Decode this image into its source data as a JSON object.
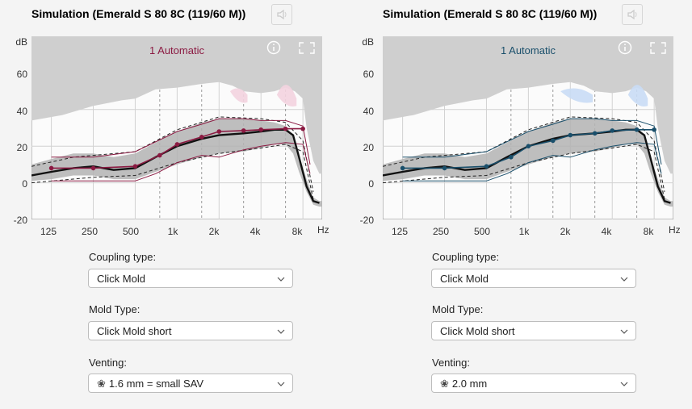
{
  "panels": [
    {
      "title": "Simulation (Emerald S 80 8C (119/60 M))",
      "accent": "#8b1a42",
      "band_color": "#f3d3df",
      "mode_label": "1 Automatic",
      "fields": {
        "coupling": {
          "label": "Coupling type:",
          "value": "Click Mold"
        },
        "mold": {
          "label": "Mold Type:",
          "value": "Click Mold short"
        },
        "venting": {
          "label": "Venting:",
          "value": "1.6 mm = small SAV"
        }
      }
    },
    {
      "title": "Simulation (Emerald S 80 8C (119/60 M))",
      "accent": "#1a4f6b",
      "band_color": "#c9dcf5",
      "mode_label": "1 Automatic",
      "fields": {
        "coupling": {
          "label": "Coupling type:",
          "value": "Click Mold"
        },
        "mold": {
          "label": "Mold Type:",
          "value": "Click Mold short"
        },
        "venting": {
          "label": "Venting:",
          "value": "2.0 mm"
        }
      }
    }
  ],
  "axis": {
    "y_unit": "dB",
    "y_ticks": [
      "60",
      "40",
      "20",
      "0",
      "-20"
    ],
    "x_ticks": [
      "125",
      "250",
      "500",
      "1k",
      "2k",
      "4k",
      "8k"
    ],
    "x_unit": "Hz"
  },
  "icons": {
    "mute": "speaker-muted-icon",
    "info": "info-icon",
    "expand": "expand-icon",
    "chevron": "chevron-down-icon",
    "fan": "fan-icon"
  },
  "chart_data": [
    {
      "type": "line",
      "x_scale": "log",
      "xlim": [
        90,
        11000
      ],
      "ylim": [
        -20,
        80
      ],
      "x": [
        125,
        250,
        500,
        750,
        1000,
        1500,
        2000,
        3000,
        4000,
        6000,
        8000
      ],
      "series": [
        {
          "values": [
            8,
            8,
            9,
            15,
            21,
            25,
            28,
            28.5,
            29,
            29.5,
            29.5
          ]
        }
      ]
    },
    {
      "type": "line",
      "x_scale": "log",
      "xlim": [
        90,
        11000
      ],
      "ylim": [
        -20,
        80
      ],
      "x": [
        125,
        250,
        500,
        750,
        1000,
        1500,
        2000,
        3000,
        4000,
        6000,
        8000
      ],
      "series": [
        {
          "values": [
            8,
            8,
            9,
            14,
            20,
            23,
            26,
            27,
            28.5,
            29,
            29
          ]
        }
      ]
    }
  ]
}
